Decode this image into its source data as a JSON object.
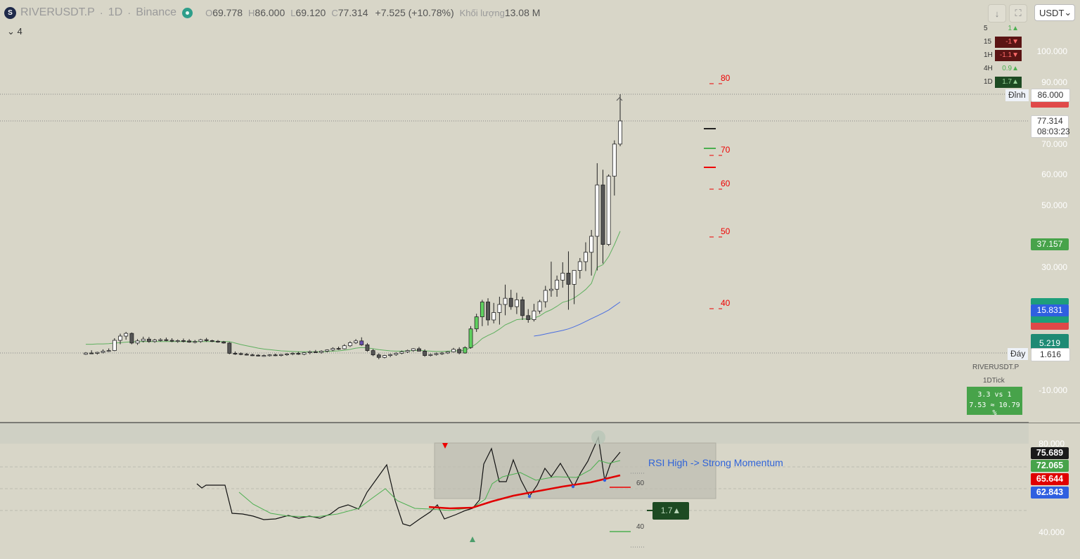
{
  "header": {
    "logo_text": "S",
    "symbol": "RIVERUSDT.P",
    "interval": "1D",
    "exchange": "Binance",
    "open_label": "O",
    "open": "69.778",
    "high_label": "H",
    "high": "86.000",
    "low_label": "L",
    "low": "69.120",
    "close_label": "C",
    "close": "77.314",
    "change": "+7.525 (+10.78%)",
    "volume_label": "Khối lượng",
    "volume": "13.08 M",
    "collapse_label": "4",
    "currency": "USDT",
    "download_icon": "↓",
    "fullscreen_icon": "⛶",
    "chevron": "⌄"
  },
  "timeframe_table": [
    {
      "tf": "5",
      "value": "1▲",
      "color": "#4caf50",
      "bg": "transparent"
    },
    {
      "tf": "15",
      "value": "-1▼",
      "color": "#ff6b6b",
      "bg": "#5a1414"
    },
    {
      "tf": "1H",
      "value": "-1.1▼",
      "color": "#ff6b6b",
      "bg": "#5a1414"
    },
    {
      "tf": "4H",
      "value": "0.9▲",
      "color": "#4caf50",
      "bg": "transparent"
    },
    {
      "tf": "1D",
      "value": "1.7▲",
      "color": "#9ad69a",
      "bg": "#1d4a22"
    }
  ],
  "price_axis": {
    "ticks": [
      "100.000",
      "90.000",
      "70.000",
      "60.000",
      "50.000",
      "30.000",
      "-10.000"
    ]
  },
  "price_tags": {
    "top_label": "Đỉnh",
    "top_value": "86.000",
    "last_value": "77.314",
    "countdown": "08:03:23",
    "ema_value": "37.157",
    "blue_value": "15.831",
    "green_value": "5.219",
    "bottom_label": "Đáy",
    "bottom_value": "1.616"
  },
  "rsi_scale_labels": [
    "80",
    "70",
    "60",
    "50",
    "40"
  ],
  "ticker_box": {
    "symbol": "RIVERUSDT.P",
    "tick": "1DTick",
    "line1": "3.3 vs 1",
    "line2": "7.53 ≈ 10.79 %"
  },
  "rsi_panel": {
    "axis": [
      "80.000",
      "40.000"
    ],
    "tags": [
      "75.689",
      "72.065",
      "65.644",
      "62.843"
    ],
    "annotation": "RSI High -> Strong Momentum",
    "level_60": "60",
    "level_40": "40",
    "badge": "1.7▲"
  },
  "colors": {
    "background": "#d8d6c8",
    "up_candle": "#ffffff",
    "down_candle": "#555555",
    "ema_green": "#5fb05f",
    "ema_blue": "#4a6ee0",
    "rsi_line": "#111111",
    "rsi_ma": "#4caf50",
    "rsi_red": "#e00000"
  },
  "chart_data": {
    "type": "candlestick",
    "title": "RIVERUSDT.P · 1D · Binance",
    "y_axis_range": [
      -20,
      100
    ],
    "candles": [
      [
        1.2,
        1.9,
        1.0,
        1.6
      ],
      [
        1.6,
        2.5,
        1.3,
        1.5
      ],
      [
        1.5,
        2.0,
        1.1,
        1.8
      ],
      [
        1.8,
        2.8,
        1.5,
        2.2
      ],
      [
        2.2,
        3.1,
        1.9,
        2.4
      ],
      [
        2.4,
        6.5,
        2.2,
        5.8
      ],
      [
        5.8,
        8.0,
        4.5,
        7.2
      ],
      [
        7.2,
        8.6,
        6.0,
        8.1
      ],
      [
        8.1,
        8.4,
        4.5,
        4.9
      ],
      [
        4.9,
        6.2,
        4.3,
        5.6
      ],
      [
        5.6,
        7.0,
        5.1,
        6.2
      ],
      [
        6.2,
        6.9,
        5.0,
        5.4
      ],
      [
        5.4,
        6.3,
        5.0,
        5.9
      ],
      [
        5.9,
        6.5,
        5.4,
        6.0
      ],
      [
        6.0,
        6.7,
        5.5,
        5.8
      ],
      [
        5.8,
        6.5,
        5.2,
        5.5
      ],
      [
        5.5,
        6.1,
        5.0,
        5.7
      ],
      [
        5.7,
        6.4,
        5.1,
        5.6
      ],
      [
        5.6,
        6.2,
        5.0,
        5.2
      ],
      [
        5.2,
        5.9,
        4.8,
        5.4
      ],
      [
        5.4,
        6.3,
        5.0,
        6.0
      ],
      [
        6.0,
        6.6,
        5.3,
        5.7
      ],
      [
        5.7,
        6.0,
        5.2,
        5.5
      ],
      [
        5.5,
        5.9,
        5.0,
        5.3
      ],
      [
        5.3,
        5.6,
        4.7,
        4.9
      ],
      [
        4.9,
        5.2,
        1.2,
        1.5
      ],
      [
        1.5,
        2.1,
        1.0,
        1.4
      ],
      [
        1.4,
        1.8,
        0.9,
        1.2
      ],
      [
        1.2,
        1.6,
        0.8,
        1.0
      ],
      [
        1.0,
        1.4,
        0.6,
        0.9
      ],
      [
        0.9,
        1.2,
        0.5,
        0.7
      ],
      [
        0.7,
        1.1,
        0.4,
        0.8
      ],
      [
        0.8,
        1.2,
        0.5,
        1.0
      ],
      [
        1.0,
        1.4,
        0.6,
        0.8
      ],
      [
        0.8,
        1.3,
        0.5,
        1.1
      ],
      [
        1.1,
        1.6,
        0.7,
        1.3
      ],
      [
        1.3,
        1.8,
        0.9,
        1.5
      ],
      [
        1.5,
        2.0,
        1.0,
        1.2
      ],
      [
        1.2,
        1.9,
        0.9,
        1.7
      ],
      [
        1.7,
        2.4,
        1.2,
        2.0
      ],
      [
        2.0,
        2.6,
        1.6,
        1.8
      ],
      [
        1.8,
        2.5,
        1.4,
        2.2
      ],
      [
        2.2,
        2.8,
        1.8,
        2.6
      ],
      [
        2.6,
        3.5,
        2.2,
        3.1
      ],
      [
        3.1,
        3.7,
        2.6,
        3.0
      ],
      [
        3.0,
        4.5,
        2.8,
        4.0
      ],
      [
        4.0,
        5.5,
        3.6,
        5.0
      ],
      [
        5.0,
        6.2,
        4.6,
        5.6
      ],
      [
        5.6,
        6.8,
        4.0,
        4.3
      ],
      [
        4.3,
        4.9,
        2.0,
        2.4
      ],
      [
        2.4,
        2.9,
        0.6,
        1.0
      ],
      [
        1.0,
        1.5,
        -0.4,
        0.2
      ],
      [
        0.2,
        1.0,
        -0.1,
        0.8
      ],
      [
        0.8,
        1.4,
        0.3,
        1.1
      ],
      [
        1.1,
        1.8,
        0.7,
        1.5
      ],
      [
        1.5,
        2.4,
        1.2,
        2.0
      ],
      [
        2.0,
        2.7,
        1.6,
        2.4
      ],
      [
        2.4,
        3.2,
        2.0,
        3.0
      ],
      [
        3.0,
        3.6,
        2.6,
        2.2
      ],
      [
        2.2,
        2.8,
        0.4,
        0.8
      ],
      [
        0.8,
        1.4,
        0.5,
        1.1
      ],
      [
        1.1,
        1.7,
        0.8,
        1.4
      ],
      [
        1.4,
        1.9,
        1.0,
        1.6
      ],
      [
        1.6,
        2.2,
        1.3,
        2.0
      ],
      [
        2.0,
        3.3,
        1.8,
        2.8
      ],
      [
        2.8,
        3.5,
        1.2,
        1.6
      ],
      [
        1.6,
        3.8,
        1.4,
        3.4
      ],
      [
        3.4,
        10.5,
        3.0,
        9.6
      ],
      [
        9.6,
        14.5,
        8.6,
        13.5
      ],
      [
        13.5,
        19.0,
        10.5,
        18.3
      ],
      [
        18.3,
        19.5,
        10.7,
        12.5
      ],
      [
        12.5,
        18.0,
        11.4,
        14.9
      ],
      [
        14.9,
        20.0,
        11.0,
        17.5
      ],
      [
        17.5,
        24.0,
        14.0,
        19.5
      ],
      [
        19.5,
        22.3,
        15.8,
        16.8
      ],
      [
        16.8,
        21.3,
        14.4,
        19.0
      ],
      [
        19.0,
        20.0,
        12.5,
        13.9
      ],
      [
        13.9,
        16.0,
        11.6,
        12.6
      ],
      [
        12.6,
        17.7,
        12.0,
        15.4
      ],
      [
        15.4,
        19.0,
        14.5,
        18.4
      ],
      [
        18.4,
        23.6,
        16.5,
        22.1
      ],
      [
        22.1,
        31.6,
        20.0,
        22.5
      ],
      [
        22.5,
        27.0,
        20.0,
        25.5
      ],
      [
        25.5,
        31.4,
        23.0,
        27.8
      ],
      [
        27.8,
        35.0,
        15.8,
        24.1
      ],
      [
        24.1,
        28.6,
        17.6,
        28.7
      ],
      [
        28.7,
        32.8,
        26.0,
        31.6
      ],
      [
        31.6,
        38.0,
        28.5,
        34.7
      ],
      [
        34.7,
        42.0,
        27.0,
        40.0
      ],
      [
        40.0,
        63.6,
        28.7,
        56.5
      ],
      [
        56.5,
        61.5,
        31.0,
        37.3
      ],
      [
        37.3,
        60.0,
        36.8,
        59.4
      ],
      [
        59.4,
        71.0,
        53.0,
        69.8
      ],
      [
        69.8,
        86.0,
        69.1,
        77.3
      ]
    ],
    "series": [
      {
        "name": "EMA",
        "color": "#5fb05f",
        "values": [
          4.5,
          4.5,
          4.6,
          4.6,
          4.7,
          4.9,
          5.0,
          5.2,
          5.3,
          5.4,
          5.4,
          5.4,
          5.4,
          5.4,
          5.4,
          5.4,
          5.4,
          5.4,
          5.4,
          5.4,
          5.4,
          5.4,
          5.4,
          5.4,
          5.4,
          5.4,
          4.9,
          4.4,
          4.0,
          3.6,
          3.2,
          2.9,
          2.7,
          2.5,
          2.3,
          2.2,
          2.1,
          2.0,
          2.0,
          2.0,
          2.0,
          2.0,
          2.1,
          2.2,
          2.3,
          2.5,
          2.8,
          3.2,
          3.4,
          3.3,
          3.0,
          2.7,
          2.5,
          2.3,
          2.2,
          2.2,
          2.3,
          2.4,
          2.5,
          2.3,
          2.2,
          2.1,
          2.1,
          2.2,
          2.3,
          2.3,
          2.5,
          3.4,
          4.7,
          6.4,
          7.4,
          8.3,
          9.5,
          10.9,
          11.7,
          12.6,
          12.8,
          12.8,
          13.1,
          13.8,
          15.0,
          15.8,
          16.9,
          18.2,
          18.7,
          19.6,
          20.9,
          22.4,
          24.4,
          29.7,
          30.6,
          33.3,
          37.2,
          41.6
        ]
      },
      {
        "name": "EMA2",
        "color": "#4a6ee0",
        "values": [
          null,
          null,
          null,
          null,
          null,
          null,
          null,
          null,
          null,
          null,
          null,
          null,
          null,
          null,
          null,
          null,
          null,
          null,
          null,
          null,
          null,
          null,
          null,
          null,
          null,
          null,
          null,
          null,
          null,
          null,
          null,
          null,
          null,
          null,
          null,
          null,
          null,
          null,
          null,
          null,
          null,
          null,
          null,
          null,
          null,
          null,
          null,
          null,
          null,
          null,
          null,
          null,
          null,
          null,
          null,
          null,
          null,
          null,
          null,
          null,
          null,
          null,
          null,
          null,
          null,
          null,
          null,
          null,
          null,
          null,
          null,
          null,
          null,
          null,
          null,
          null,
          null,
          null,
          7.2,
          7.5,
          7.9,
          8.3,
          8.7,
          9.1,
          9.6,
          10.3,
          11.1,
          12.0,
          12.9,
          13.8,
          14.7,
          15.7,
          17.0,
          18.3
        ]
      }
    ],
    "rsi": {
      "y_range": [
        30,
        85
      ],
      "rsi_values": [
        null,
        null,
        null,
        null,
        null,
        null,
        null,
        null,
        null,
        null,
        null,
        null,
        null,
        null,
        null,
        null,
        null,
        null,
        null,
        null,
        null,
        null,
        null,
        null,
        null,
        null,
        null,
        null,
        null,
        null,
        null,
        null,
        null,
        null,
        null,
        null,
        null,
        null,
        null,
        null,
        null,
        null,
        null,
        null,
        null,
        null,
        null,
        null,
        null,
        null,
        null,
        null,
        null,
        null,
        null,
        null,
        null,
        null,
        null,
        null,
        null,
        null,
        null,
        null,
        null,
        null,
        null,
        null,
        null,
        null,
        null,
        null,
        null,
        null,
        null,
        null,
        null,
        null,
        null,
        null,
        null,
        null,
        null,
        null,
        null,
        null,
        null,
        null,
        null,
        null,
        null,
        null,
        null,
        null
      ]
    }
  }
}
